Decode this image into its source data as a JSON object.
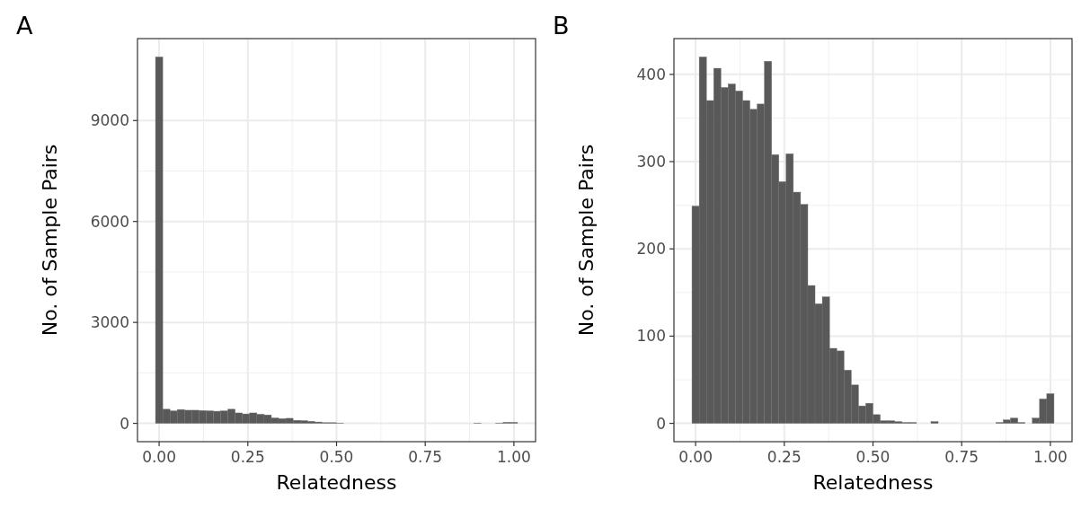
{
  "chart_data": [
    {
      "type": "histogram",
      "title": "A",
      "xlabel": "Relatedness",
      "ylabel": "No. of Sample Pairs",
      "color": "#595959",
      "grid": true,
      "bins": [
        -0.0102,
        0.0102,
        0.0306,
        0.051,
        0.0714,
        0.0918,
        0.1122,
        0.1327,
        0.1531,
        0.1735,
        0.1939,
        0.2143,
        0.2347,
        0.2551,
        0.2755,
        0.2959,
        0.3163,
        0.3367,
        0.3571,
        0.3776,
        0.398,
        0.4184,
        0.4388,
        0.4592,
        0.4796,
        0.5,
        0.5204,
        0.5408,
        0.5612,
        0.5816,
        0.602,
        0.6224,
        0.6429,
        0.6633,
        0.6837,
        0.7041,
        0.7245,
        0.7449,
        0.7653,
        0.7857,
        0.8061,
        0.8265,
        0.8469,
        0.8673,
        0.8878,
        0.9082,
        0.9286,
        0.949,
        0.9694,
        0.9898,
        1.0102
      ],
      "values": [
        10890,
        420,
        370,
        410,
        390,
        390,
        380,
        370,
        360,
        370,
        420,
        310,
        280,
        310,
        270,
        250,
        160,
        140,
        150,
        90,
        80,
        60,
        40,
        20,
        20,
        10,
        0,
        0,
        0,
        0,
        0,
        0,
        0,
        0,
        0,
        0,
        0,
        0,
        0,
        0,
        0,
        0,
        0,
        0,
        10,
        0,
        0,
        10,
        30,
        30
      ],
      "xlim": [
        -0.061,
        1.061
      ],
      "ylim": [
        -545,
        11435
      ],
      "xticks": [
        {
          "value": 0,
          "label": "0.00"
        },
        {
          "value": 0.25,
          "label": "0.25"
        },
        {
          "value": 0.5,
          "label": "0.50"
        },
        {
          "value": 0.75,
          "label": "0.75"
        },
        {
          "value": 1,
          "label": "1.00"
        }
      ],
      "yticks": [
        0,
        3000,
        6000,
        9000
      ]
    },
    {
      "type": "histogram",
      "title": "B",
      "xlabel": "Relatedness",
      "ylabel": "No. of Sample Pairs",
      "color": "#595959",
      "grid": true,
      "bins": [
        -0.0102,
        0.0102,
        0.0306,
        0.051,
        0.0714,
        0.0918,
        0.1122,
        0.1327,
        0.1531,
        0.1735,
        0.1939,
        0.2143,
        0.2347,
        0.2551,
        0.2755,
        0.2959,
        0.3163,
        0.3367,
        0.3571,
        0.3776,
        0.398,
        0.4184,
        0.4388,
        0.4592,
        0.4796,
        0.5,
        0.5204,
        0.5408,
        0.5612,
        0.5816,
        0.602,
        0.6224,
        0.6429,
        0.6633,
        0.6837,
        0.7041,
        0.7245,
        0.7449,
        0.7653,
        0.7857,
        0.8061,
        0.8265,
        0.8469,
        0.8673,
        0.8878,
        0.9082,
        0.9286,
        0.949,
        0.9694,
        0.9898,
        1.0102
      ],
      "values": [
        249,
        420,
        370,
        407,
        385,
        389,
        381,
        370,
        360,
        366,
        415,
        308,
        277,
        309,
        265,
        251,
        158,
        137,
        145,
        86,
        83,
        61,
        44,
        20,
        23,
        10,
        3,
        3,
        2,
        1,
        1,
        0,
        0,
        2,
        0,
        0,
        0,
        0,
        0,
        0,
        0,
        0,
        1,
        4,
        6,
        1,
        0,
        6,
        28,
        34
      ],
      "xlim": [
        -0.061,
        1.061
      ],
      "ylim": [
        -21,
        441
      ],
      "xticks": [
        {
          "value": 0,
          "label": "0.00"
        },
        {
          "value": 0.25,
          "label": "0.25"
        },
        {
          "value": 0.5,
          "label": "0.50"
        },
        {
          "value": 0.75,
          "label": "0.75"
        },
        {
          "value": 1,
          "label": "1.00"
        }
      ],
      "yticks": [
        0,
        100,
        200,
        300,
        400
      ]
    }
  ]
}
